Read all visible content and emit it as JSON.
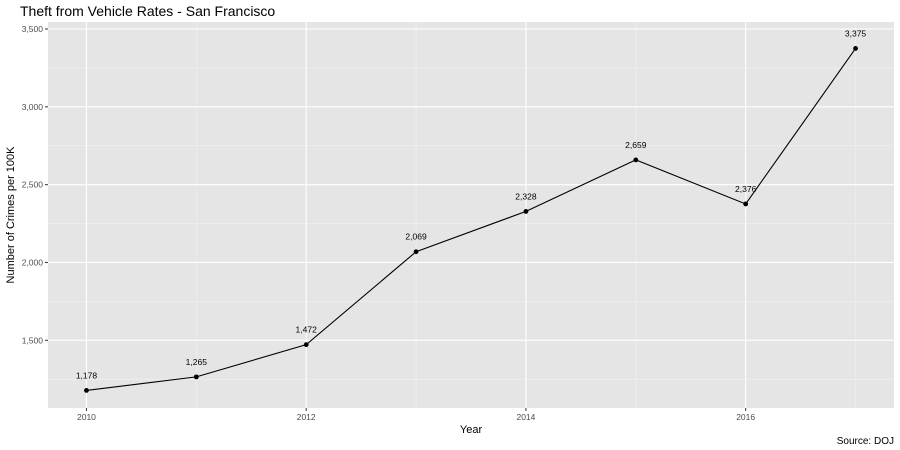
{
  "chart_data": {
    "type": "line",
    "title": "Theft from Vehicle Rates - San Francisco",
    "xlabel": "Year",
    "ylabel": "Number of Crimes per 100K",
    "caption": "Source: DOJ",
    "x": [
      2010,
      2011,
      2012,
      2013,
      2014,
      2015,
      2016,
      2017
    ],
    "values": [
      1178,
      1265,
      1472,
      2069,
      2328,
      2659,
      2376,
      3375
    ],
    "data_labels": [
      "1,178",
      "1,265",
      "1,472",
      "2,069",
      "2,328",
      "2,659",
      "2,376",
      "3,375"
    ],
    "x_ticks": [
      2010,
      2012,
      2014,
      2016
    ],
    "x_tick_labels": [
      "2010",
      "2012",
      "2014",
      "2016"
    ],
    "y_ticks": [
      1500,
      2000,
      2500,
      3000,
      3500
    ],
    "y_tick_labels": [
      "1,500",
      "2,000",
      "2,500",
      "3,000",
      "3,500"
    ],
    "xlim": [
      2009.65,
      2017.35
    ],
    "ylim": [
      1065,
      3545
    ],
    "grid": true,
    "colors": {
      "panel": "#e5e5e5",
      "grid_major": "#ffffff",
      "line": "#000000",
      "point": "#000000"
    }
  }
}
